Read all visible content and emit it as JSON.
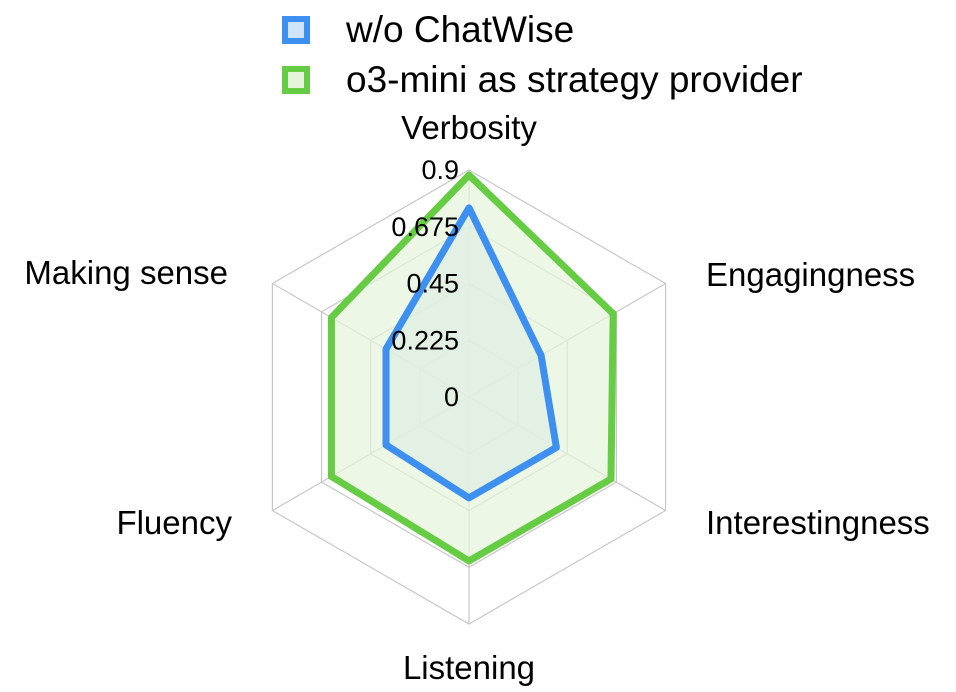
{
  "chart_data": {
    "type": "radar",
    "axes": [
      "Verbosity",
      "Engagingness",
      "Interestingness",
      "Listening",
      "Fluency",
      "Making sense"
    ],
    "rlim": [
      0,
      0.9
    ],
    "ticks": [
      "0",
      "0.225",
      "0.45",
      "0.675",
      "0.9"
    ],
    "tick_values": [
      0,
      0.225,
      0.45,
      0.675,
      0.9
    ],
    "series": [
      {
        "name": "w/o ChatWise",
        "values": [
          0.75,
          0.33,
          0.4,
          0.4,
          0.38,
          0.38
        ],
        "color": "#3d8ff0",
        "fill": "#cfe4f7"
      },
      {
        "name": "o3-mini as strategy provider",
        "values": [
          0.88,
          0.66,
          0.65,
          0.65,
          0.63,
          0.63
        ],
        "color": "#66cc44",
        "fill": "#e6f4dc"
      }
    ],
    "grid": true,
    "legend_position": "top"
  }
}
